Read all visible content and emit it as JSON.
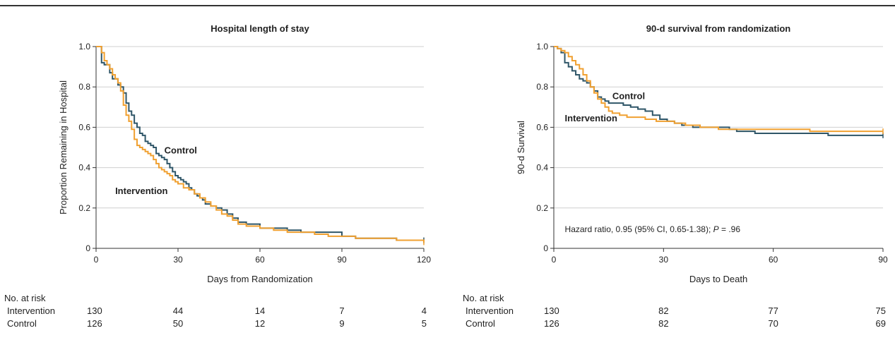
{
  "chart_data": [
    {
      "type": "line",
      "title": "Hospital length of stay",
      "xlabel": "Days from Randomization",
      "ylabel": "Proportion Remaining in Hospital",
      "xlim": [
        0,
        120
      ],
      "ylim": [
        0,
        1.0
      ],
      "x_ticks": [
        "0",
        "30",
        "60",
        "90",
        "120"
      ],
      "y_ticks": [
        "0",
        "0.2",
        "0.4",
        "0.6",
        "0.8",
        "1.0"
      ],
      "grid": "horizontal",
      "series": [
        {
          "name": "Control",
          "color": "#2f5668",
          "x": [
            0,
            2,
            3,
            5,
            6,
            7,
            8,
            9,
            10,
            11,
            12,
            13,
            14,
            15,
            16,
            17,
            18,
            19,
            20,
            21,
            22,
            23,
            24,
            25,
            26,
            27,
            28,
            29,
            30,
            31,
            32,
            33,
            34,
            35,
            36,
            37,
            38,
            39,
            40,
            42,
            44,
            46,
            48,
            50,
            52,
            55,
            60,
            65,
            70,
            75,
            80,
            85,
            90,
            95,
            100,
            110,
            120
          ],
          "y": [
            1.0,
            0.92,
            0.91,
            0.87,
            0.84,
            0.84,
            0.81,
            0.8,
            0.77,
            0.72,
            0.68,
            0.66,
            0.62,
            0.6,
            0.57,
            0.56,
            0.53,
            0.52,
            0.51,
            0.5,
            0.47,
            0.46,
            0.45,
            0.44,
            0.42,
            0.4,
            0.38,
            0.36,
            0.35,
            0.34,
            0.33,
            0.32,
            0.3,
            0.29,
            0.27,
            0.26,
            0.25,
            0.24,
            0.22,
            0.21,
            0.2,
            0.19,
            0.17,
            0.15,
            0.13,
            0.12,
            0.1,
            0.1,
            0.09,
            0.08,
            0.08,
            0.08,
            0.06,
            0.05,
            0.05,
            0.04,
            0.04
          ]
        },
        {
          "name": "Intervention",
          "color": "#f0a030",
          "x": [
            0,
            2,
            3,
            4,
            5,
            6,
            7,
            8,
            9,
            10,
            11,
            12,
            13,
            14,
            15,
            16,
            17,
            18,
            19,
            20,
            21,
            22,
            23,
            24,
            25,
            26,
            27,
            28,
            29,
            30,
            32,
            34,
            36,
            38,
            40,
            42,
            44,
            46,
            48,
            50,
            52,
            55,
            60,
            65,
            70,
            75,
            80,
            85,
            90,
            95,
            100,
            110,
            120
          ],
          "y": [
            1.0,
            0.97,
            0.93,
            0.91,
            0.89,
            0.86,
            0.84,
            0.82,
            0.78,
            0.71,
            0.66,
            0.63,
            0.59,
            0.54,
            0.51,
            0.5,
            0.49,
            0.48,
            0.47,
            0.46,
            0.44,
            0.42,
            0.4,
            0.39,
            0.38,
            0.37,
            0.36,
            0.34,
            0.33,
            0.32,
            0.3,
            0.29,
            0.27,
            0.25,
            0.23,
            0.21,
            0.19,
            0.17,
            0.16,
            0.14,
            0.12,
            0.11,
            0.1,
            0.09,
            0.08,
            0.08,
            0.07,
            0.06,
            0.06,
            0.05,
            0.05,
            0.04,
            0.03
          ]
        }
      ],
      "annotations": [
        {
          "text": "Control",
          "x": 25,
          "y": 0.47,
          "color": "#2f5668"
        },
        {
          "text": "Intervention",
          "x": 7,
          "y": 0.27,
          "color": "#f0a030"
        }
      ],
      "risk_table": {
        "header": "No. at risk",
        "rows": [
          {
            "label": "Intervention",
            "values": [
              "130",
              "44",
              "14",
              "7",
              "4"
            ]
          },
          {
            "label": "Control",
            "values": [
              "126",
              "50",
              "12",
              "9",
              "5"
            ]
          }
        ]
      }
    },
    {
      "type": "line",
      "title": "90-d survival from randomization",
      "xlabel": "Days to Death",
      "ylabel": "90-d Survival",
      "xlim": [
        0,
        90
      ],
      "ylim": [
        0,
        1.0
      ],
      "x_ticks": [
        "0",
        "30",
        "60",
        "90"
      ],
      "y_ticks": [
        "0",
        "0.2",
        "0.4",
        "0.6",
        "0.8",
        "1.0"
      ],
      "grid": "horizontal",
      "series": [
        {
          "name": "Control",
          "color": "#2f5668",
          "x": [
            0,
            1,
            2,
            3,
            4,
            5,
            6,
            7,
            8,
            9,
            10,
            11,
            12,
            13,
            14,
            15,
            17,
            19,
            21,
            23,
            25,
            27,
            29,
            31,
            33,
            35,
            38,
            41,
            44,
            46,
            48,
            50,
            55,
            60,
            65,
            70,
            75,
            80,
            85,
            90
          ],
          "y": [
            1.0,
            0.99,
            0.97,
            0.92,
            0.9,
            0.88,
            0.86,
            0.84,
            0.83,
            0.82,
            0.8,
            0.78,
            0.75,
            0.74,
            0.73,
            0.72,
            0.72,
            0.71,
            0.7,
            0.69,
            0.68,
            0.66,
            0.64,
            0.63,
            0.62,
            0.61,
            0.6,
            0.6,
            0.6,
            0.6,
            0.59,
            0.58,
            0.57,
            0.57,
            0.57,
            0.57,
            0.56,
            0.56,
            0.56,
            0.56
          ]
        },
        {
          "name": "Intervention",
          "color": "#f0a030",
          "x": [
            0,
            1,
            2,
            3,
            4,
            5,
            6,
            7,
            8,
            9,
            10,
            11,
            12,
            13,
            14,
            15,
            16,
            18,
            20,
            22,
            25,
            28,
            30,
            33,
            36,
            40,
            45,
            50,
            55,
            60,
            65,
            70,
            75,
            80,
            85,
            90
          ],
          "y": [
            1.0,
            0.99,
            0.98,
            0.97,
            0.95,
            0.93,
            0.91,
            0.89,
            0.86,
            0.83,
            0.8,
            0.77,
            0.74,
            0.72,
            0.7,
            0.68,
            0.67,
            0.66,
            0.65,
            0.65,
            0.64,
            0.63,
            0.63,
            0.62,
            0.61,
            0.6,
            0.59,
            0.59,
            0.59,
            0.59,
            0.59,
            0.58,
            0.58,
            0.58,
            0.58,
            0.58
          ]
        }
      ],
      "annotations": [
        {
          "text": "Control",
          "x": 16,
          "y": 0.74,
          "color": "#2f5668"
        },
        {
          "text": "Intervention",
          "x": 3,
          "y": 0.63,
          "color": "#f0a030"
        },
        {
          "text": "Hazard ratio, 0.95 (95% CI, 0.65-1.38); ",
          "italic_suffix": "P",
          "suffix": " = .96",
          "x": 3,
          "y": 0.08,
          "color": "#222222"
        }
      ],
      "risk_table": {
        "header": "No. at risk",
        "rows": [
          {
            "label": "Intervention",
            "values": [
              "130",
              "82",
              "77",
              "75"
            ]
          },
          {
            "label": "Control",
            "values": [
              "126",
              "82",
              "70",
              "69"
            ]
          }
        ]
      }
    }
  ]
}
